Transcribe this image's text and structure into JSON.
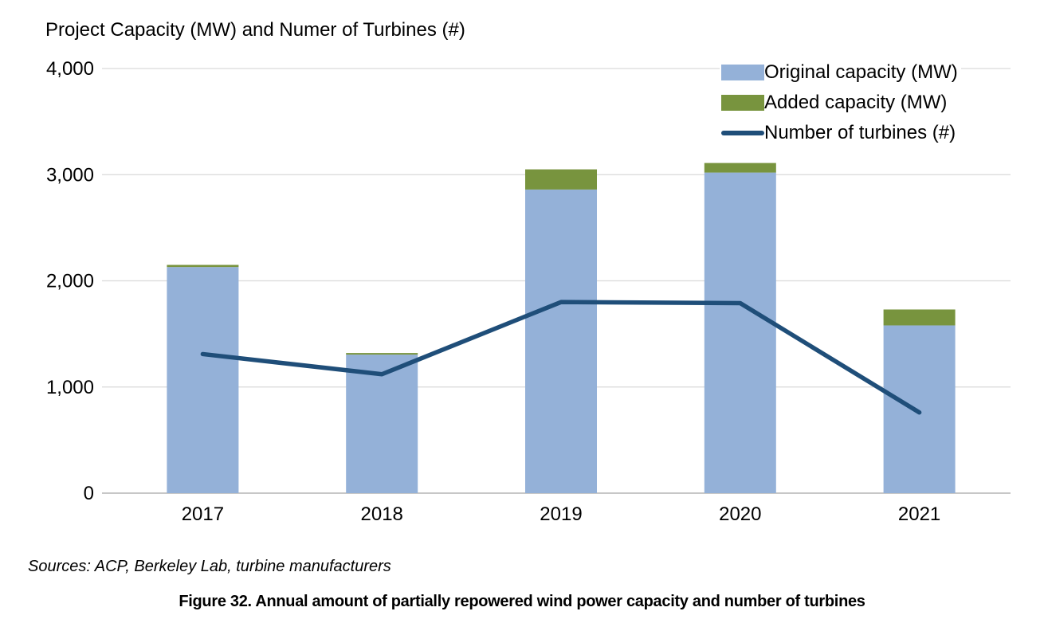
{
  "page": {
    "sources": "Sources: ACP, Berkeley Lab, turbine manufacturers",
    "caption": "Figure 32. Annual amount of partially repowered wind power capacity and number of turbines"
  },
  "chart_data": {
    "type": "bar",
    "subtype": "stacked-bars-with-line-overlay",
    "title": "Project Capacity (MW) and Numer of Turbines (#)",
    "xlabel": "",
    "ylabel": "",
    "categories": [
      "2017",
      "2018",
      "2019",
      "2020",
      "2021"
    ],
    "series": [
      {
        "name": "Original capacity (MW)",
        "type": "bar",
        "stack": "capacity",
        "color": "#94B1D8",
        "values": [
          2130,
          1305,
          2860,
          3020,
          1580
        ]
      },
      {
        "name": "Added capacity (MW)",
        "type": "bar",
        "stack": "capacity",
        "color": "#78943E",
        "values": [
          20,
          15,
          190,
          90,
          150
        ]
      },
      {
        "name": "Number of turbines (#)",
        "type": "line",
        "color": "#1F4E79",
        "values": [
          1310,
          1120,
          1800,
          1790,
          760
        ]
      }
    ],
    "ylim": [
      0,
      4000
    ],
    "yticks": [
      0,
      1000,
      2000,
      3000,
      4000
    ],
    "grid": true,
    "gridline_color": "#D9D9D9",
    "axis_line_color": "#BFBFBF",
    "legend_position": "top-right"
  }
}
